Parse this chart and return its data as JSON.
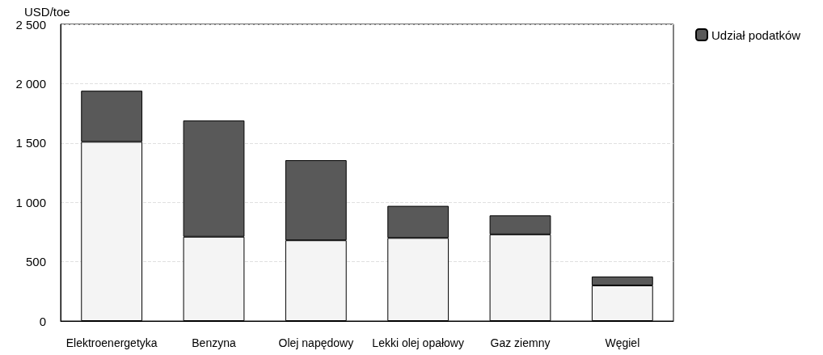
{
  "chart_data": {
    "type": "bar",
    "ylabel": "USD/toe",
    "stacked": true,
    "categories": [
      "Elektroenergetyka",
      "Benzyna",
      "Olej napędowy",
      "Lekki olej opałowy",
      "Gaz ziemny",
      "Węgiel"
    ],
    "series": [
      {
        "color": "#f4f4f4",
        "values": [
          1510,
          710,
          680,
          700,
          730,
          300
        ]
      },
      {
        "name": "Udział podatków",
        "color": "#595959",
        "values": [
          430,
          980,
          675,
          270,
          160,
          75
        ]
      }
    ],
    "ylim": [
      0,
      2500
    ],
    "yticks": [
      0,
      500,
      {
        "value": 1000,
        "label": "1 000"
      },
      {
        "value": 1500,
        "label": "1 500"
      },
      {
        "value": 2000,
        "label": "2 000"
      },
      {
        "value": 2500,
        "label": "2 500"
      }
    ],
    "grid": "y",
    "legend": "top right"
  }
}
